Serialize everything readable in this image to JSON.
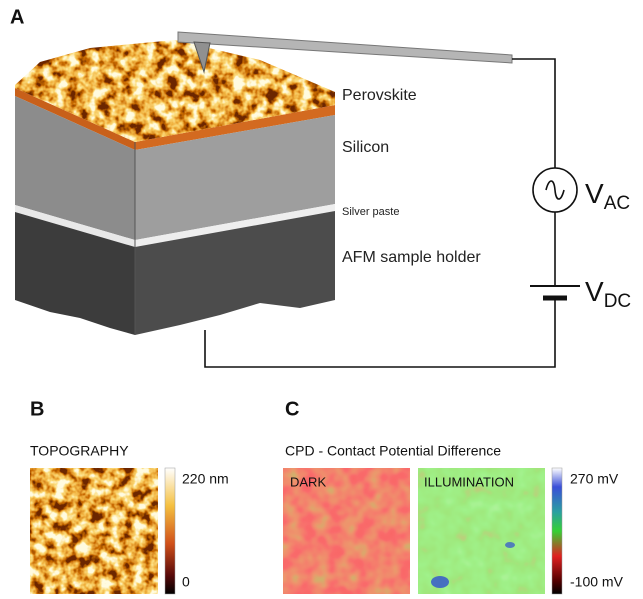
{
  "panels": {
    "a": {
      "label": "A",
      "layers": [
        "Perovskite",
        "Silicon",
        "Silver paste",
        "AFM sample holder"
      ],
      "sources": [
        {
          "symbol": "V",
          "subscript": "AC"
        },
        {
          "symbol": "V",
          "subscript": "DC"
        }
      ]
    },
    "b": {
      "label": "B",
      "title": "TOPOGRAPHY",
      "colorbar": {
        "max": "220 nm",
        "min": "0"
      }
    },
    "c": {
      "label": "C",
      "title": "CPD - Contact Potential Difference",
      "images": [
        "DARK",
        "ILLUMINATION"
      ],
      "colorbar": {
        "max": "270 mV",
        "min": "-100 mV"
      }
    }
  }
}
